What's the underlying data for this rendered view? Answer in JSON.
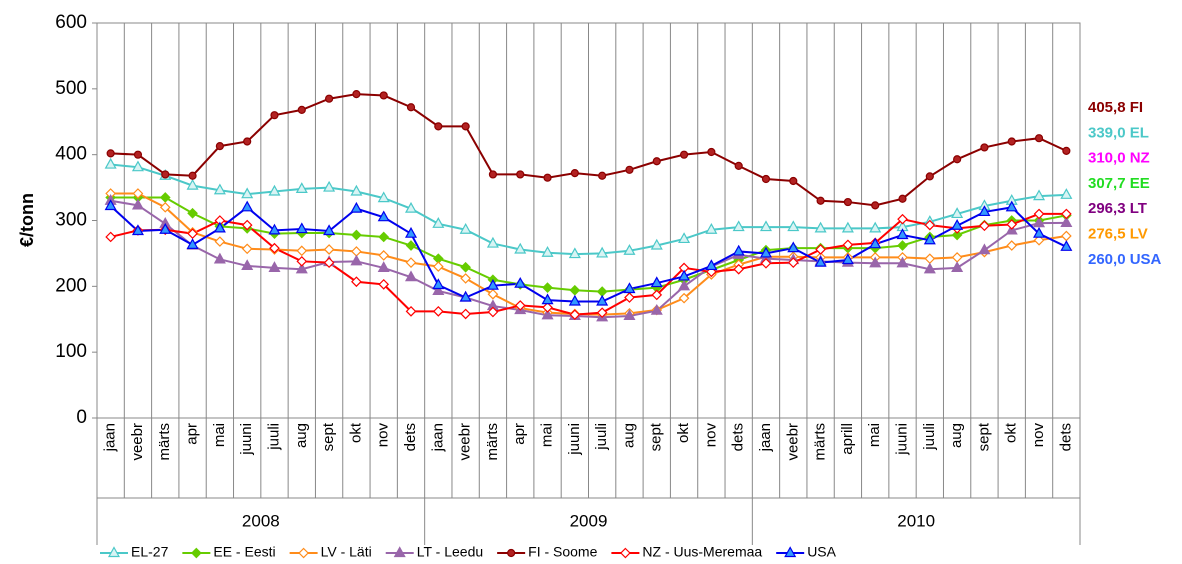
{
  "chart_data": {
    "type": "line",
    "y_label": "€/tonn",
    "categories": [
      "jaan",
      "veebr",
      "märts",
      "apr",
      "mai",
      "juuni",
      "juuli",
      "aug",
      "sept",
      "okt",
      "nov",
      "dets",
      "jaan",
      "veebr",
      "märts",
      "apr",
      "mai",
      "juuni",
      "juuli",
      "aug",
      "sept",
      "okt",
      "nov",
      "dets",
      "jaan",
      "veebr",
      "märts",
      "aprill",
      "mai",
      "juuni",
      "juuli",
      "aug",
      "sept",
      "okt",
      "nov",
      "dets"
    ],
    "years": [
      "2008",
      "2009",
      "2010"
    ],
    "ylim": [
      0,
      600
    ],
    "yticks": [
      0,
      100,
      200,
      300,
      400,
      500,
      600
    ],
    "grid": "x",
    "series": [
      {
        "name": "EL-27",
        "color": "#4bc8c8",
        "marker": "triangle",
        "marker_fill": "#d8f4f4",
        "values": [
          385,
          381,
          368,
          353,
          346,
          340,
          344,
          348,
          350,
          344,
          334,
          318,
          295,
          286,
          265,
          256,
          251,
          249,
          250,
          254,
          262,
          272,
          286,
          290,
          290,
          290,
          288,
          288,
          288,
          290,
          298,
          310,
          322,
          330,
          337,
          339
        ]
      },
      {
        "name": "EE - Eesti",
        "color": "#66cc00",
        "marker": "diamond",
        "marker_fill": "#66cc00",
        "values": [
          335,
          335,
          335,
          311,
          291,
          288,
          280,
          281,
          281,
          278,
          275,
          262,
          242,
          229,
          210,
          203,
          198,
          194,
          192,
          195,
          198,
          210,
          225,
          240,
          255,
          258,
          258,
          258,
          258,
          262,
          275,
          278,
          293,
          300,
          300,
          307.7
        ]
      },
      {
        "name": "LV - Läti",
        "color": "#ff8c1a",
        "marker": "diamond",
        "marker_fill": "#ffffff",
        "values": [
          341,
          341,
          320,
          282,
          268,
          257,
          256,
          254,
          256,
          253,
          247,
          236,
          230,
          212,
          188,
          167,
          160,
          158,
          157,
          159,
          164,
          182,
          218,
          233,
          245,
          245,
          244,
          244,
          244,
          244,
          242,
          244,
          252,
          262,
          270,
          276.5
        ]
      },
      {
        "name": "LT - Leedu",
        "color": "#9966aa",
        "marker": "triangle",
        "marker_fill": "#9966aa",
        "values": [
          330,
          323,
          295,
          262,
          241,
          231,
          228,
          226,
          237,
          238,
          228,
          214,
          193,
          183,
          170,
          164,
          156,
          155,
          153,
          155,
          163,
          200,
          230,
          248,
          242,
          240,
          238,
          236,
          235,
          235,
          226,
          228,
          255,
          285,
          296,
          296.3
        ]
      },
      {
        "name": "FI - Soome",
        "color": "#8b0000",
        "marker": "circle",
        "marker_fill": "#b22222",
        "values": [
          402,
          400,
          370,
          368,
          413,
          420,
          460,
          468,
          485,
          492,
          490,
          472,
          443,
          443,
          370,
          370,
          365,
          372,
          368,
          377,
          390,
          400,
          404,
          383,
          363,
          360,
          330,
          328,
          323,
          333,
          367,
          393,
          411,
          420,
          425,
          405.8
        ]
      },
      {
        "name": "NZ - Uus-Meremaa",
        "color": "#ff0000",
        "marker": "diamond",
        "marker_fill": "#ffffff",
        "values": [
          275,
          285,
          286,
          280,
          300,
          293,
          258,
          238,
          236,
          207,
          203,
          162,
          162,
          158,
          161,
          171,
          168,
          157,
          160,
          183,
          187,
          228,
          222,
          226,
          235,
          236,
          256,
          263,
          266,
          302,
          293,
          288,
          292,
          294,
          310,
          310
        ]
      },
      {
        "name": "USA",
        "color": "#0000ee",
        "marker": "triangle",
        "marker_fill": "#3399ff",
        "values": [
          322,
          284,
          286,
          263,
          288,
          320,
          285,
          287,
          284,
          318,
          305,
          280,
          202,
          183,
          201,
          204,
          179,
          177,
          177,
          196,
          205,
          215,
          231,
          253,
          250,
          258,
          236,
          240,
          264,
          278,
          270,
          292,
          313,
          320,
          280,
          260
        ]
      }
    ],
    "annotations": [
      {
        "text": "405,8 FI",
        "color": "#8b0000"
      },
      {
        "text": "339,0 EL",
        "color": "#4bc8c8"
      },
      {
        "text": "310,0 NZ",
        "color": "#ff00ff"
      },
      {
        "text": "307,7 EE",
        "color": "#22dd22"
      },
      {
        "text": "296,3 LT",
        "color": "#800080"
      },
      {
        "text": "276,5 LV",
        "color": "#ff9900"
      },
      {
        "text": "260,0 USA",
        "color": "#3366ff"
      }
    ]
  }
}
